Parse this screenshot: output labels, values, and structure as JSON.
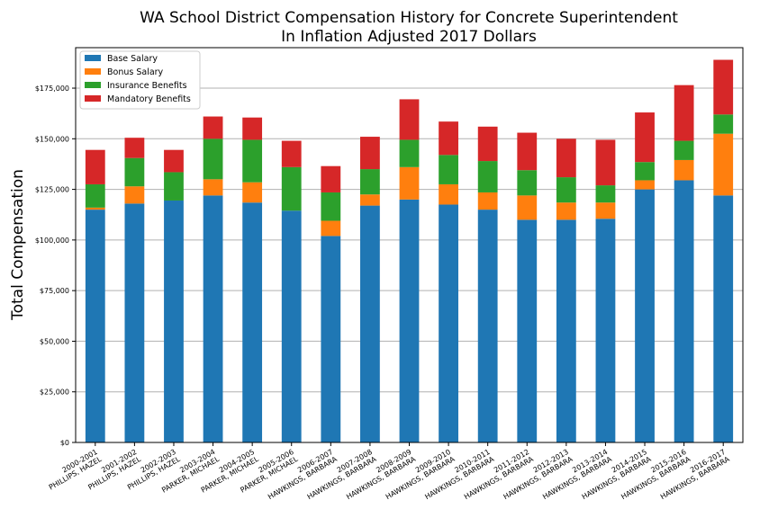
{
  "chart_data": {
    "type": "bar",
    "stacked": true,
    "title": "WA School District Compensation History for Concrete Superintendent",
    "subtitle": "In Inflation Adjusted 2017 Dollars",
    "xlabel": "",
    "ylabel": "Total Compensation",
    "ylim": [
      0,
      195000
    ],
    "y_ticks": [
      0,
      25000,
      50000,
      75000,
      100000,
      125000,
      150000,
      175000
    ],
    "y_tick_labels": [
      "$0",
      "$25,000",
      "$50,000",
      "$75,000",
      "$100,000",
      "$125,000",
      "$150,000",
      "$175,000"
    ],
    "grid": "horizontal",
    "legend_position": "top-left",
    "categories": [
      [
        "2000-2001",
        "PHILLIPS, HAZEL"
      ],
      [
        "2001-2002",
        "PHILLIPS, HAZEL"
      ],
      [
        "2002-2003",
        "PHILLIPS, HAZEL"
      ],
      [
        "2003-2004",
        "PARKER, MICHAEL"
      ],
      [
        "2004-2005",
        "PARKER, MICHAEL"
      ],
      [
        "2005-2006",
        "PARKER, MICHAEL"
      ],
      [
        "2006-2007",
        "HAWKINGS, BARBARA"
      ],
      [
        "2007-2008",
        "HAWKINGS, BARBARA"
      ],
      [
        "2008-2009",
        "HAWKINGS, BARBARA"
      ],
      [
        "2009-2010",
        "HAWKINGS, BARBARA"
      ],
      [
        "2010-2011",
        "HAWKINGS, BARBARA"
      ],
      [
        "2011-2012",
        "HAWKINGS, BARBARA"
      ],
      [
        "2012-2013",
        "HAWKINGS, BARBARA"
      ],
      [
        "2013-2014",
        "HAWKINGS, BARBARA"
      ],
      [
        "2014-2015",
        "HAWKINGS, BARBARA"
      ],
      [
        "2015-2016",
        "HAWKINGS, BARBARA"
      ],
      [
        "2016-2017",
        "HAWKINGS, BARBARA"
      ]
    ],
    "series": [
      {
        "name": "Base Salary",
        "color": "#1f77b4",
        "values": [
          115000,
          118000,
          119500,
          122000,
          118500,
          114500,
          102000,
          117000,
          120000,
          117500,
          115000,
          110000,
          110000,
          110500,
          125000,
          129500,
          122000
        ]
      },
      {
        "name": "Bonus Salary",
        "color": "#ff7f0e",
        "values": [
          1000,
          8500,
          0,
          8000,
          10000,
          0,
          7500,
          5500,
          16000,
          10000,
          8500,
          12000,
          8500,
          8000,
          4500,
          10000,
          30500
        ]
      },
      {
        "name": "Insurance Benefits",
        "color": "#2ca02c",
        "values": [
          11500,
          14000,
          14000,
          20000,
          21000,
          21500,
          14000,
          12500,
          13500,
          14500,
          15500,
          12500,
          12500,
          8500,
          9000,
          9500,
          9500
        ]
      },
      {
        "name": "Mandatory Benefits",
        "color": "#d62728",
        "values": [
          17000,
          10000,
          11000,
          11000,
          11000,
          13000,
          13000,
          16000,
          20000,
          16500,
          17000,
          18500,
          19000,
          22500,
          24500,
          27500,
          27000
        ]
      }
    ]
  }
}
